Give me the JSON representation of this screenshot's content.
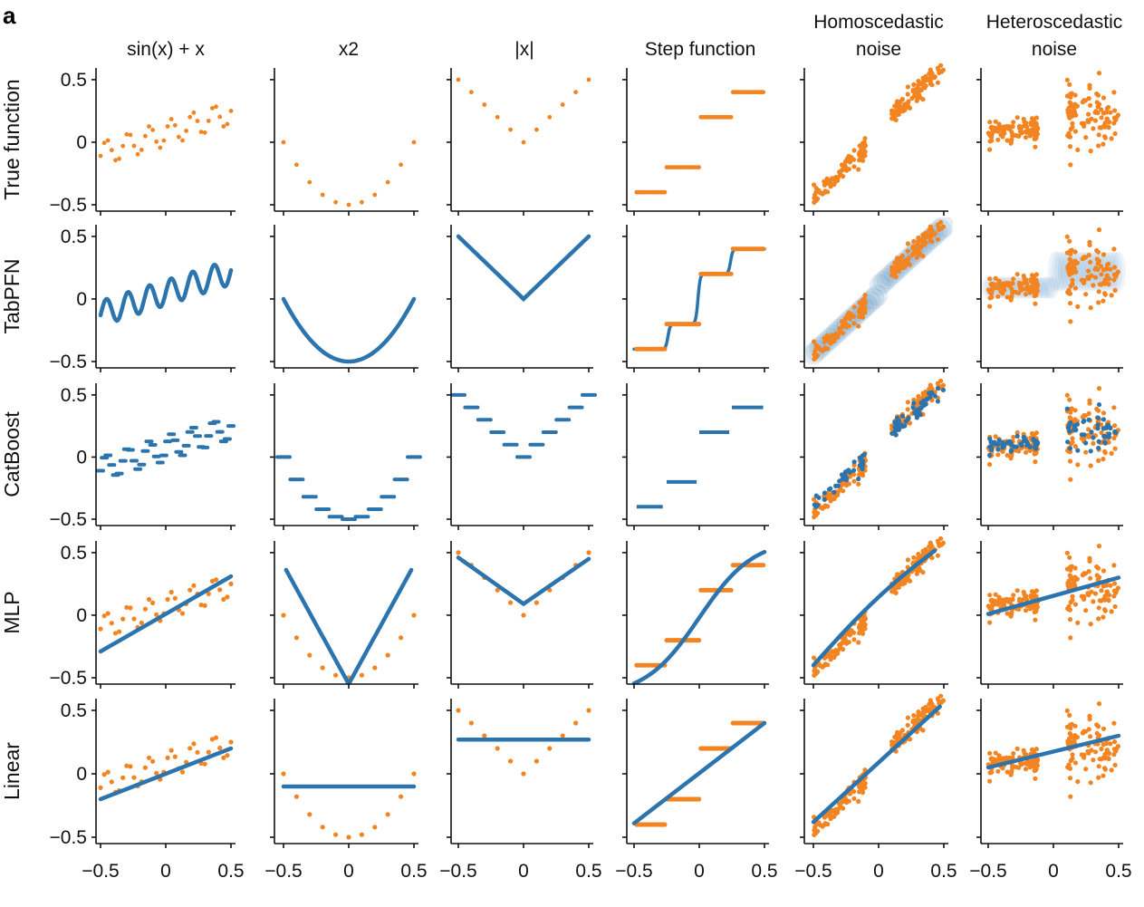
{
  "figure": {
    "panel_letter": "a",
    "row_labels": [
      "True function",
      "TabPFN",
      "CatBoost",
      "MLP",
      "Linear"
    ],
    "column_titles": [
      {
        "lines": [
          "sin(x) + x"
        ]
      },
      {
        "lines": [
          "x2"
        ]
      },
      {
        "lines": [
          "|x|"
        ]
      },
      {
        "lines": [
          "Step function"
        ]
      },
      {
        "lines": [
          "Homoscedastic",
          "noise"
        ]
      },
      {
        "lines": [
          "Heteroscedastic",
          "noise"
        ]
      }
    ],
    "x_tick_labels": [
      "−0.5",
      "0",
      "0.5"
    ],
    "y_tick_labels": [
      "0.5",
      "0",
      "−0.5"
    ],
    "colors": {
      "data": "#f28522",
      "model": "#2b74ae",
      "axis": "#111111"
    }
  },
  "chart_data": {
    "type": "scatter",
    "grid": false,
    "xlim": [
      -0.5,
      0.5
    ],
    "ylim": [
      -0.5,
      0.55
    ],
    "x_ticks": [
      -0.5,
      0,
      0.5
    ],
    "y_ticks": [
      0.5,
      0,
      -0.5
    ],
    "functions": [
      "sin(x) + x",
      "x^2",
      "|x|",
      "step",
      "linear + homoscedastic noise",
      "step-like + heteroscedastic noise"
    ],
    "models": [
      "True function",
      "TabPFN",
      "CatBoost",
      "MLP",
      "Linear"
    ],
    "series_notes": "Orange points are training data; blue points/lines are model predictions.",
    "fits": {
      "MLP_sin": {
        "x": [
          -0.5,
          0.5
        ],
        "y": [
          -0.29,
          0.31
        ]
      },
      "Linear_sin": {
        "x": [
          -0.5,
          0.5
        ],
        "y": [
          -0.2,
          0.2
        ]
      },
      "Linear_x2": {
        "x": [
          -0.5,
          0.5
        ],
        "y": [
          -0.1,
          -0.1
        ]
      },
      "Linear_abs": {
        "x": [
          -0.5,
          0.5
        ],
        "y": [
          0.27,
          0.27
        ]
      },
      "Linear_step": {
        "x": [
          -0.5,
          0.5
        ],
        "y": [
          -0.39,
          0.4
        ]
      },
      "Linear_homo": {
        "x": [
          -0.5,
          0.5
        ],
        "y": [
          -0.38,
          0.53
        ]
      },
      "Linear_hetero": {
        "x": [
          -0.5,
          0.5
        ],
        "y": [
          0.05,
          0.3
        ]
      },
      "MLP_abs": {
        "x": [
          -0.5,
          0,
          0.5
        ],
        "y": [
          0.46,
          0.09,
          0.45
        ]
      },
      "MLP_hetero": {
        "x": [
          -0.5,
          0.5
        ],
        "y": [
          0.01,
          0.3
        ]
      }
    }
  }
}
